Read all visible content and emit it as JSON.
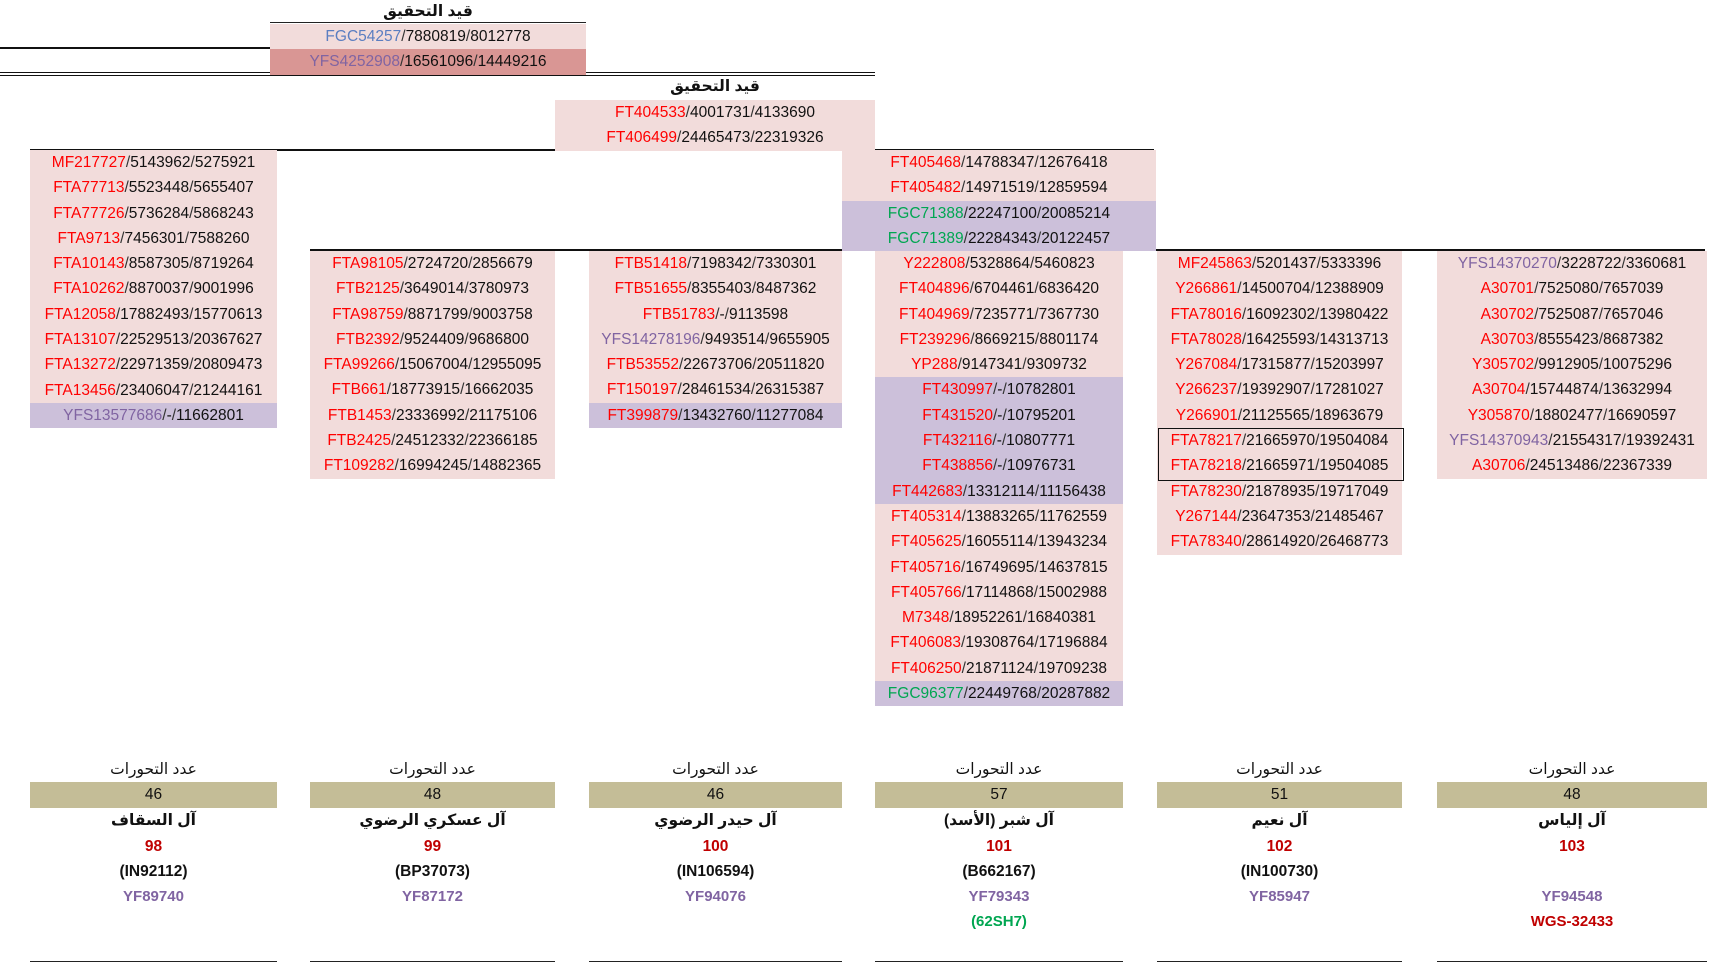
{
  "top_block": {
    "title": "قيد التحقيق",
    "rows": [
      {
        "snp": "FGC54257",
        "color": "blue",
        "b38": "7880819",
        "b37": "8012778",
        "bg": "pink"
      },
      {
        "snp": "YFS4252908",
        "color": "purple",
        "b38": "16561096",
        "b37": "14449216",
        "bg": "dark"
      }
    ]
  },
  "second_block": {
    "title": "قيد التحقيق",
    "rows": [
      {
        "snp": "FT404533",
        "color": "red",
        "b38": "4001731",
        "b37": "4133690",
        "bg": "pink"
      },
      {
        "snp": "FT406499",
        "color": "red",
        "b38": "24465473",
        "b37": "22319326",
        "bg": "pink"
      }
    ]
  },
  "trunk_block": {
    "rows": [
      {
        "snp": "FT405468",
        "color": "red",
        "b38": "14788347",
        "b37": "12676418",
        "bg": "pink"
      },
      {
        "snp": "FT405482",
        "color": "red",
        "b38": "14971519",
        "b37": "12859594",
        "bg": "pink"
      },
      {
        "snp": "FGC71388",
        "color": "green",
        "b38": "22247100",
        "b37": "20085214",
        "bg": "lav"
      },
      {
        "snp": "FGC71389",
        "color": "green",
        "b38": "22284343",
        "b37": "20122457",
        "bg": "lav"
      }
    ]
  },
  "columns": [
    {
      "id": "saqqaf",
      "rows": [
        {
          "snp": "MF217727",
          "color": "red",
          "b38": "5143962",
          "b37": "5275921",
          "bg": "pink"
        },
        {
          "snp": "FTA77713",
          "color": "red",
          "b38": "5523448",
          "b37": "5655407",
          "bg": "pink"
        },
        {
          "snp": "FTA77726",
          "color": "red",
          "b38": "5736284",
          "b37": "5868243",
          "bg": "pink"
        },
        {
          "snp": "FTA9713",
          "color": "red",
          "b38": "7456301",
          "b37": "7588260",
          "bg": "pink"
        },
        {
          "snp": "FTA10143",
          "color": "red",
          "b38": "8587305",
          "b37": "8719264",
          "bg": "pink"
        },
        {
          "snp": "FTA10262",
          "color": "red",
          "b38": "8870037",
          "b37": "9001996",
          "bg": "pink"
        },
        {
          "snp": "FTA12058",
          "color": "red",
          "b38": "17882493",
          "b37": "15770613",
          "bg": "pink"
        },
        {
          "snp": "FTA13107",
          "color": "red",
          "b38": "22529513",
          "b37": "20367627",
          "bg": "pink"
        },
        {
          "snp": "FTA13272",
          "color": "red",
          "b38": "22971359",
          "b37": "20809473",
          "bg": "pink"
        },
        {
          "snp": "FTA13456",
          "color": "red",
          "b38": "23406047",
          "b37": "21244161",
          "bg": "pink"
        },
        {
          "snp": "YFS13577686",
          "color": "purple",
          "b38": "-",
          "b37": "11662801",
          "bg": "lav"
        }
      ],
      "footer": {
        "label": "عدد التحورات",
        "count": "46",
        "name": "آل السقاف",
        "number": "98",
        "code": "(IN92112)",
        "snp": "YF89740"
      }
    },
    {
      "id": "askari",
      "rows": [
        {
          "snp": "FTA98105",
          "color": "red",
          "b38": "2724720",
          "b37": "2856679",
          "bg": "pink"
        },
        {
          "snp": "FTB2125",
          "color": "red",
          "b38": "3649014",
          "b37": "3780973",
          "bg": "pink"
        },
        {
          "snp": "FTA98759",
          "color": "red",
          "b38": "8871799",
          "b37": "9003758",
          "bg": "pink"
        },
        {
          "snp": "FTB2392",
          "color": "red",
          "b38": "9524409",
          "b37": "9686800",
          "bg": "pink"
        },
        {
          "snp": "FTA99266",
          "color": "red",
          "b38": "15067004",
          "b37": "12955095",
          "bg": "pink"
        },
        {
          "snp": "FTB661",
          "color": "red",
          "b38": "18773915",
          "b37": "16662035",
          "bg": "pink"
        },
        {
          "snp": "FTB1453",
          "color": "red",
          "b38": "23336992",
          "b37": "21175106",
          "bg": "pink"
        },
        {
          "snp": "FTB2425",
          "color": "red",
          "b38": "24512332",
          "b37": "22366185",
          "bg": "pink"
        },
        {
          "snp": "FT109282",
          "color": "red",
          "b38": "16994245",
          "b37": "14882365",
          "bg": "pink"
        }
      ],
      "footer": {
        "label": "عدد التحورات",
        "count": "48",
        "name": "آل عسكري الرضوي",
        "number": "99",
        "code": "(BP37073)",
        "snp": "YF87172"
      }
    },
    {
      "id": "haidar",
      "rows": [
        {
          "snp": "FTB51418",
          "color": "red",
          "b38": "7198342",
          "b37": "7330301",
          "bg": "pink"
        },
        {
          "snp": "FTB51655",
          "color": "red",
          "b38": "8355403",
          "b37": "8487362",
          "bg": "pink"
        },
        {
          "snp": "FTB51783",
          "color": "red",
          "b38": "-",
          "b37": "9113598",
          "bg": "pink"
        },
        {
          "snp": "YFS14278196",
          "color": "purple",
          "b38": "9493514",
          "b37": "9655905",
          "bg": "pink"
        },
        {
          "snp": "FTB53552",
          "color": "red",
          "b38": "22673706",
          "b37": "20511820",
          "bg": "pink"
        },
        {
          "snp": "FT150197",
          "color": "red",
          "b38": "28461534",
          "b37": "26315387",
          "bg": "pink"
        },
        {
          "snp": "FT399879",
          "color": "red",
          "b38": "13432760",
          "b37": "11277084",
          "bg": "lav"
        }
      ],
      "footer": {
        "label": "عدد التحورات",
        "count": "46",
        "name": "آل حيدر الرضوي",
        "number": "100",
        "code": "(IN106594)",
        "snp": "YF94076"
      }
    },
    {
      "id": "shubair",
      "rows": [
        {
          "snp": "Y222808",
          "color": "red",
          "b38": "5328864",
          "b37": "5460823",
          "bg": "pink"
        },
        {
          "snp": "FT404896",
          "color": "red",
          "b38": "6704461",
          "b37": "6836420",
          "bg": "pink"
        },
        {
          "snp": "FT404969",
          "color": "red",
          "b38": "7235771",
          "b37": "7367730",
          "bg": "pink"
        },
        {
          "snp": "FT239296",
          "color": "red",
          "b38": "8669215",
          "b37": "8801174",
          "bg": "pink"
        },
        {
          "snp": "YP288",
          "color": "red",
          "b38": "9147341",
          "b37": "9309732",
          "bg": "pink"
        },
        {
          "snp": "FT430997",
          "color": "red",
          "b38": "-",
          "b37": "10782801",
          "bg": "lav"
        },
        {
          "snp": "FT431520",
          "color": "red",
          "b38": "-",
          "b37": "10795201",
          "bg": "lav"
        },
        {
          "snp": "FT432116",
          "color": "red",
          "b38": "-",
          "b37": "10807771",
          "bg": "lav"
        },
        {
          "snp": "FT438856",
          "color": "red",
          "b38": "-",
          "b37": "10976731",
          "bg": "lav"
        },
        {
          "snp": "FT442683",
          "color": "red",
          "b38": "13312114",
          "b37": "11156438",
          "bg": "lav"
        },
        {
          "snp": "FT405314",
          "color": "red",
          "b38": "13883265",
          "b37": "11762559",
          "bg": "pink"
        },
        {
          "snp": "FT405625",
          "color": "red",
          "b38": "16055114",
          "b37": "13943234",
          "bg": "pink"
        },
        {
          "snp": "FT405716",
          "color": "red",
          "b38": "16749695",
          "b37": "14637815",
          "bg": "pink"
        },
        {
          "snp": "FT405766",
          "color": "red",
          "b38": "17114868",
          "b37": "15002988",
          "bg": "pink"
        },
        {
          "snp": "M7348",
          "color": "red",
          "b38": "18952261",
          "b37": "16840381",
          "bg": "pink"
        },
        {
          "snp": "FT406083",
          "color": "red",
          "b38": "19308764",
          "b37": "17196884",
          "bg": "pink"
        },
        {
          "snp": "FT406250",
          "color": "red",
          "b38": "21871124",
          "b37": "19709238",
          "bg": "pink"
        },
        {
          "snp": "FGC96377",
          "color": "green",
          "b38": "22449768",
          "b37": "20287882",
          "bg": "lav"
        }
      ],
      "footer": {
        "label": "عدد التحورات",
        "count": "57",
        "name": "آل شبر (الأسد)",
        "number": "101",
        "code": "(B662167)",
        "snp": "YF79343",
        "extra": "(62SH7)",
        "extra_color": "green"
      }
    },
    {
      "id": "naeem",
      "rows": [
        {
          "snp": "MF245863",
          "color": "red",
          "b38": "5201437",
          "b37": "5333396",
          "bg": "pink"
        },
        {
          "snp": "Y266861",
          "color": "red",
          "b38": "14500704",
          "b37": "12388909",
          "bg": "pink"
        },
        {
          "snp": "FTA78016",
          "color": "red",
          "b38": "16092302",
          "b37": "13980422",
          "bg": "pink"
        },
        {
          "snp": "FTA78028",
          "color": "red",
          "b38": "16425593",
          "b37": "14313713",
          "bg": "pink"
        },
        {
          "snp": "Y267084",
          "color": "red",
          "b38": "17315877",
          "b37": "15203997",
          "bg": "pink"
        },
        {
          "snp": "Y266237",
          "color": "red",
          "b38": "19392907",
          "b37": "17281027",
          "bg": "pink"
        },
        {
          "snp": "Y266901",
          "color": "red",
          "b38": "21125565",
          "b37": "18963679",
          "bg": "pink"
        },
        {
          "snp": "FTA78217",
          "color": "red",
          "b38": "21665970",
          "b37": "19504084",
          "bg": "pink"
        },
        {
          "snp": "FTA78218",
          "color": "red",
          "b38": "21665971",
          "b37": "19504085",
          "bg": "pink"
        },
        {
          "snp": "FTA78230",
          "color": "red",
          "b38": "21878935",
          "b37": "19717049",
          "bg": "pink"
        },
        {
          "snp": "Y267144",
          "color": "red",
          "b38": "23647353",
          "b37": "21485467",
          "bg": "pink"
        },
        {
          "snp": "FTA78340",
          "color": "red",
          "b38": "28614920",
          "b37": "26468773",
          "bg": "pink"
        }
      ],
      "footer": {
        "label": "عدد التحورات",
        "count": "51",
        "name": "آل نعيم",
        "number": "102",
        "code": "(IN100730)",
        "snp": "YF85947"
      }
    },
    {
      "id": "ilyas",
      "rows": [
        {
          "snp": "YFS14370270",
          "color": "purple",
          "b38": "3228722",
          "b37": "3360681",
          "bg": "pink"
        },
        {
          "snp": "A30701",
          "color": "red",
          "b38": "7525080",
          "b37": "7657039",
          "bg": "pink"
        },
        {
          "snp": "A30702",
          "color": "red",
          "b38": "7525087",
          "b37": "7657046",
          "bg": "pink"
        },
        {
          "snp": "A30703",
          "color": "red",
          "b38": "8555423",
          "b37": "8687382",
          "bg": "pink"
        },
        {
          "snp": "Y305702",
          "color": "red",
          "b38": "9912905",
          "b37": "10075296",
          "bg": "pink"
        },
        {
          "snp": "A30704",
          "color": "red",
          "b38": "15744874",
          "b37": "13632994",
          "bg": "pink"
        },
        {
          "snp": "Y305870",
          "color": "red",
          "b38": "18802477",
          "b37": "16690597",
          "bg": "pink"
        },
        {
          "snp": "YFS14370943",
          "color": "purple",
          "b38": "21554317",
          "b37": "19392431",
          "bg": "pink"
        },
        {
          "snp": "A30706",
          "color": "red",
          "b38": "24513486",
          "b37": "22367339",
          "bg": "pink"
        }
      ],
      "footer": {
        "label": "عدد التحورات",
        "count": "48",
        "name": "آل إلياس",
        "number": "103",
        "code": "",
        "snp": "YF94548",
        "extra": "WGS-32433",
        "extra_color": "red"
      }
    }
  ]
}
